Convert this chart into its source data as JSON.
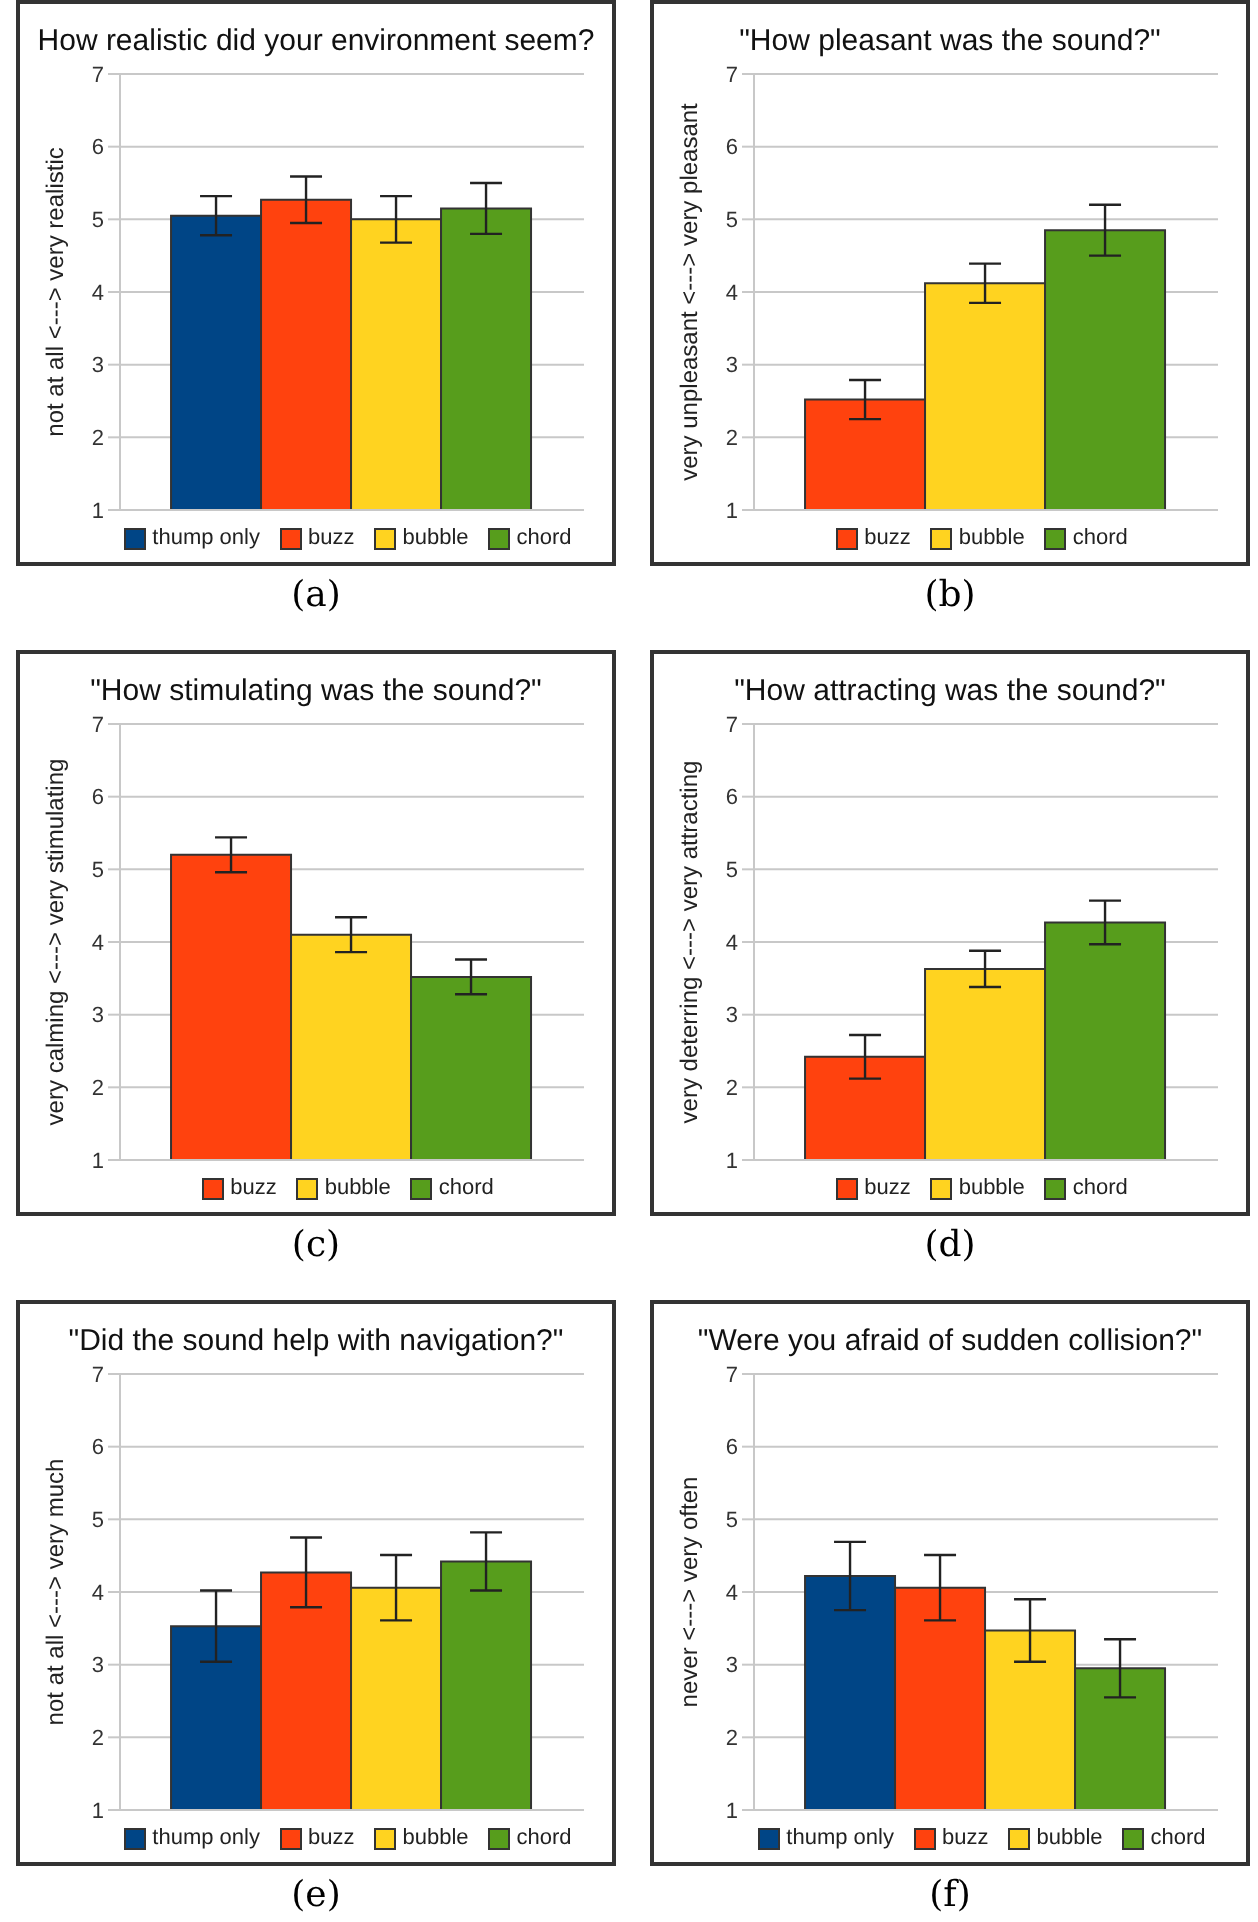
{
  "chart_data": [
    {
      "type": "bar",
      "title": "How realistic did your environment seem?",
      "ylabel": "not at all <---> very realistic",
      "categories": [
        null
      ],
      "series": [
        {
          "name": "thump only",
          "color": "#004586",
          "values": [
            5.05
          ],
          "errors": [
            0.27
          ]
        },
        {
          "name": "buzz",
          "color": "#ff420e",
          "values": [
            5.27
          ],
          "errors": [
            0.32
          ]
        },
        {
          "name": "bubble",
          "color": "#ffd320",
          "values": [
            5.0
          ],
          "errors": [
            0.32
          ]
        },
        {
          "name": "chord",
          "color": "#579d1c",
          "values": [
            5.15
          ],
          "errors": [
            0.35
          ]
        }
      ],
      "ylim": [
        1,
        7
      ],
      "yticks": [
        1,
        2,
        3,
        4,
        5,
        6,
        7
      ],
      "grid": "y",
      "legend": "bottom",
      "annotations": [
        "(a)"
      ]
    },
    {
      "type": "bar",
      "title": "\"How pleasant was the sound?\"",
      "ylabel": "very unpleasant <---> very pleasant",
      "categories": [
        null
      ],
      "series": [
        {
          "name": "buzz",
          "color": "#ff420e",
          "values": [
            2.52
          ],
          "errors": [
            0.27
          ]
        },
        {
          "name": "bubble",
          "color": "#ffd320",
          "values": [
            4.12
          ],
          "errors": [
            0.27
          ]
        },
        {
          "name": "chord",
          "color": "#579d1c",
          "values": [
            4.85
          ],
          "errors": [
            0.35
          ]
        }
      ],
      "ylim": [
        1,
        7
      ],
      "yticks": [
        1,
        2,
        3,
        4,
        5,
        6,
        7
      ],
      "grid": "y",
      "legend": "bottom",
      "annotations": [
        "(b)"
      ]
    },
    {
      "type": "bar",
      "title": "\"How stimulating was the sound?\"",
      "ylabel": "very calming <---> very stimulating",
      "categories": [
        null
      ],
      "series": [
        {
          "name": "buzz",
          "color": "#ff420e",
          "values": [
            5.2
          ],
          "errors": [
            0.24
          ]
        },
        {
          "name": "bubble",
          "color": "#ffd320",
          "values": [
            4.1
          ],
          "errors": [
            0.24
          ]
        },
        {
          "name": "chord",
          "color": "#579d1c",
          "values": [
            3.52
          ],
          "errors": [
            0.24
          ]
        }
      ],
      "ylim": [
        1,
        7
      ],
      "yticks": [
        1,
        2,
        3,
        4,
        5,
        6,
        7
      ],
      "grid": "y",
      "legend": "bottom",
      "annotations": [
        "(c)"
      ]
    },
    {
      "type": "bar",
      "title": "\"How attracting was the sound?\"",
      "ylabel": "very deterring <---> very attracting",
      "categories": [
        null
      ],
      "series": [
        {
          "name": "buzz",
          "color": "#ff420e",
          "values": [
            2.42
          ],
          "errors": [
            0.3
          ]
        },
        {
          "name": "bubble",
          "color": "#ffd320",
          "values": [
            3.63
          ],
          "errors": [
            0.25
          ]
        },
        {
          "name": "chord",
          "color": "#579d1c",
          "values": [
            4.27
          ],
          "errors": [
            0.3
          ]
        }
      ],
      "ylim": [
        1,
        7
      ],
      "yticks": [
        1,
        2,
        3,
        4,
        5,
        6,
        7
      ],
      "grid": "y",
      "legend": "bottom",
      "annotations": [
        "(d)"
      ]
    },
    {
      "type": "bar",
      "title": "\"Did the sound help with navigation?\"",
      "ylabel": "not at all <---> very much",
      "categories": [
        null
      ],
      "series": [
        {
          "name": "thump only",
          "color": "#004586",
          "values": [
            3.53
          ],
          "errors": [
            0.49
          ]
        },
        {
          "name": "buzz",
          "color": "#ff420e",
          "values": [
            4.27
          ],
          "errors": [
            0.48
          ]
        },
        {
          "name": "bubble",
          "color": "#ffd320",
          "values": [
            4.06
          ],
          "errors": [
            0.45
          ]
        },
        {
          "name": "chord",
          "color": "#579d1c",
          "values": [
            4.42
          ],
          "errors": [
            0.4
          ]
        }
      ],
      "ylim": [
        1,
        7
      ],
      "yticks": [
        1,
        2,
        3,
        4,
        5,
        6,
        7
      ],
      "grid": "y",
      "legend": "bottom",
      "annotations": [
        "(e)"
      ]
    },
    {
      "type": "bar",
      "title": "\"Were you afraid of sudden collision?\"",
      "ylabel": "never <---> very often",
      "categories": [
        null
      ],
      "series": [
        {
          "name": "thump only",
          "color": "#004586",
          "values": [
            4.22
          ],
          "errors": [
            0.47
          ]
        },
        {
          "name": "buzz",
          "color": "#ff420e",
          "values": [
            4.06
          ],
          "errors": [
            0.45
          ]
        },
        {
          "name": "bubble",
          "color": "#ffd320",
          "values": [
            3.47
          ],
          "errors": [
            0.43
          ]
        },
        {
          "name": "chord",
          "color": "#579d1c",
          "values": [
            2.95
          ],
          "errors": [
            0.4
          ]
        }
      ],
      "ylim": [
        1,
        7
      ],
      "yticks": [
        1,
        2,
        3,
        4,
        5,
        6,
        7
      ],
      "grid": "y",
      "legend": "bottom",
      "annotations": [
        "(f)"
      ]
    }
  ]
}
